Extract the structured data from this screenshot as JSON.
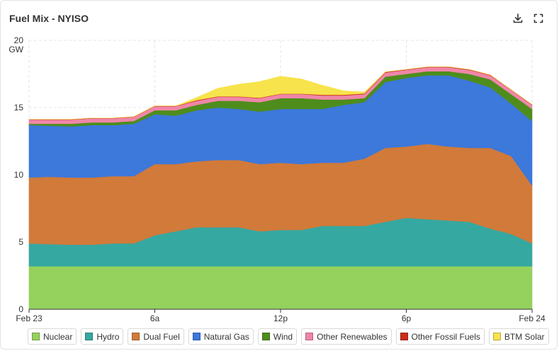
{
  "header": {
    "title": "Fuel Mix - NYISO",
    "download_icon": "download-icon",
    "expand_icon": "fullscreen-icon"
  },
  "chart_data": {
    "type": "area",
    "stacked": true,
    "title": "Fuel Mix - NYISO",
    "ylabel": "GW",
    "ylim": [
      0,
      20
    ],
    "yticks": [
      "0",
      "5",
      "10",
      "15",
      "20"
    ],
    "x": [
      0,
      1,
      2,
      3,
      4,
      5,
      6,
      7,
      8,
      9,
      10,
      11,
      12,
      13,
      14,
      15,
      16,
      17,
      18,
      19,
      20,
      21,
      22,
      23,
      24
    ],
    "x_unit": "hours since Feb 23 00:00",
    "xticks": [
      {
        "hour": 0,
        "label": "Feb 23"
      },
      {
        "hour": 6,
        "label": "6a"
      },
      {
        "hour": 12,
        "label": "12p"
      },
      {
        "hour": 18,
        "label": "6p"
      },
      {
        "hour": 24,
        "label": "Feb 24"
      }
    ],
    "grid": true,
    "legend_position": "bottom",
    "series": [
      {
        "name": "Nuclear",
        "color": "#95d15d",
        "values": [
          3.2,
          3.2,
          3.2,
          3.2,
          3.2,
          3.2,
          3.2,
          3.2,
          3.2,
          3.2,
          3.2,
          3.2,
          3.2,
          3.2,
          3.2,
          3.2,
          3.2,
          3.2,
          3.2,
          3.2,
          3.2,
          3.2,
          3.2,
          3.2,
          3.2
        ]
      },
      {
        "name": "Hydro",
        "color": "#35a8a1",
        "values": [
          1.7,
          1.65,
          1.6,
          1.6,
          1.7,
          1.7,
          2.3,
          2.6,
          2.9,
          2.9,
          2.9,
          2.6,
          2.7,
          2.7,
          3.0,
          3.0,
          3.0,
          3.3,
          3.6,
          3.5,
          3.4,
          3.3,
          2.8,
          2.4,
          1.7
        ]
      },
      {
        "name": "Dual Fuel",
        "color": "#d17a3a",
        "values": [
          4.9,
          5.0,
          5.0,
          5.0,
          5.0,
          5.0,
          5.3,
          5.0,
          4.9,
          5.0,
          5.0,
          5.0,
          5.0,
          4.9,
          4.7,
          4.7,
          5.0,
          5.5,
          5.3,
          5.6,
          5.5,
          5.5,
          6.0,
          5.8,
          4.3
        ]
      },
      {
        "name": "Natural Gas",
        "color": "#3d78db",
        "values": [
          3.9,
          3.8,
          3.8,
          3.9,
          3.8,
          3.9,
          3.7,
          3.6,
          3.8,
          3.9,
          3.8,
          3.9,
          4.0,
          4.1,
          4.0,
          4.3,
          4.2,
          4.9,
          5.1,
          5.1,
          5.3,
          5.0,
          4.5,
          3.9,
          4.8
        ]
      },
      {
        "name": "Wind",
        "color": "#4e8d1c",
        "values": [
          0.1,
          0.15,
          0.2,
          0.2,
          0.2,
          0.2,
          0.3,
          0.4,
          0.4,
          0.5,
          0.6,
          0.7,
          0.8,
          0.8,
          0.7,
          0.4,
          0.3,
          0.4,
          0.3,
          0.3,
          0.3,
          0.5,
          0.6,
          0.7,
          0.9
        ]
      },
      {
        "name": "Other Renewables",
        "color": "#ef86a8",
        "values": [
          0.3,
          0.3,
          0.3,
          0.3,
          0.3,
          0.3,
          0.3,
          0.3,
          0.3,
          0.3,
          0.3,
          0.3,
          0.3,
          0.3,
          0.3,
          0.3,
          0.3,
          0.3,
          0.3,
          0.3,
          0.3,
          0.3,
          0.3,
          0.3,
          0.3
        ]
      },
      {
        "name": "Other Fossil Fuels",
        "color": "#c92d16",
        "values": [
          0.02,
          0.02,
          0.02,
          0.02,
          0.02,
          0.02,
          0.02,
          0.02,
          0.05,
          0.03,
          0.03,
          0.03,
          0.03,
          0.03,
          0.05,
          0.05,
          0.05,
          0.05,
          0.03,
          0.03,
          0.03,
          0.03,
          0.03,
          0.02,
          0.02
        ]
      },
      {
        "name": "BTM Solar",
        "color": "#f7e34b",
        "values": [
          0,
          0,
          0,
          0,
          0,
          0,
          0,
          0,
          0.2,
          0.6,
          0.9,
          1.2,
          1.3,
          1.1,
          0.7,
          0.3,
          0.1,
          0,
          0,
          0,
          0,
          0,
          0,
          0,
          0
        ]
      }
    ]
  }
}
